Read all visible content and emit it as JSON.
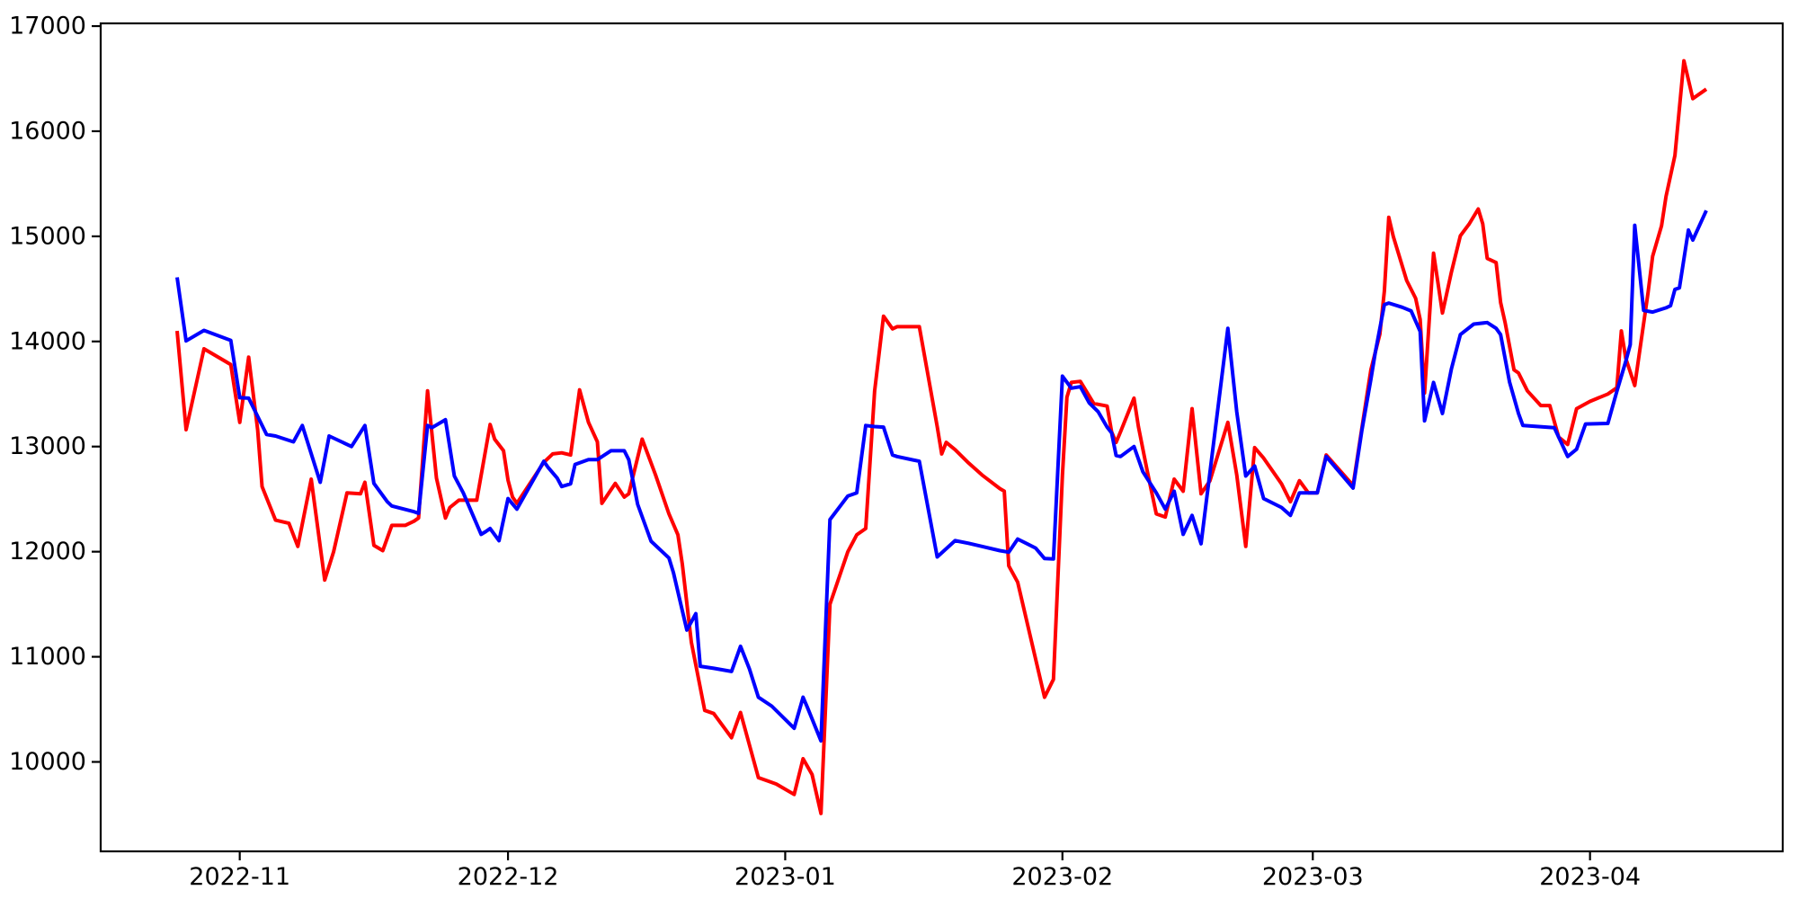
{
  "figure": {
    "background": "#ffffff",
    "axes_edge_color": "#000000",
    "tick_color": "#000000"
  },
  "chart_data": {
    "type": "line",
    "title": "",
    "xlabel": "",
    "ylabel": "",
    "grid": false,
    "legend": null,
    "x_unit": "days since 2022-10-25",
    "x_tick_labels": [
      "2022-11",
      "2022-12",
      "2023-01",
      "2023-02",
      "2023-03",
      "2023-04"
    ],
    "x_tick_positions": [
      7,
      37,
      68,
      99,
      127,
      158
    ],
    "y_tick_labels": [
      "10000",
      "11000",
      "12000",
      "13000",
      "14000",
      "15000",
      "16000",
      "17000"
    ],
    "y_tick_values": [
      10000,
      11000,
      12000,
      13000,
      14000,
      15000,
      16000,
      17000
    ],
    "xlim": [
      -8.55,
      179.55
    ],
    "ylim": [
      9149,
      17026
    ],
    "series": [
      {
        "name": "red-series",
        "color": "#ff0000",
        "points": [
          [
            0,
            14100
          ],
          [
            1,
            13160
          ],
          [
            3,
            13930
          ],
          [
            6,
            13780
          ],
          [
            7,
            13230
          ],
          [
            8,
            13850
          ],
          [
            9,
            13160
          ],
          [
            9.5,
            12620
          ],
          [
            11,
            12300
          ],
          [
            12.5,
            12270
          ],
          [
            13.5,
            12050
          ],
          [
            15,
            12690
          ],
          [
            16.5,
            11730
          ],
          [
            17.5,
            12000
          ],
          [
            19,
            12560
          ],
          [
            20.5,
            12550
          ],
          [
            21,
            12660
          ],
          [
            22,
            12060
          ],
          [
            23,
            12010
          ],
          [
            24,
            12250
          ],
          [
            25.5,
            12250
          ],
          [
            26.5,
            12290
          ],
          [
            27,
            12320
          ],
          [
            28,
            13530
          ],
          [
            29,
            12700
          ],
          [
            30,
            12320
          ],
          [
            30.5,
            12420
          ],
          [
            31.5,
            12490
          ],
          [
            33.5,
            12490
          ],
          [
            35,
            13210
          ],
          [
            35.5,
            13070
          ],
          [
            36.5,
            12960
          ],
          [
            37,
            12680
          ],
          [
            37.5,
            12520
          ],
          [
            38,
            12460
          ],
          [
            41,
            12850
          ],
          [
            42,
            12930
          ],
          [
            43,
            12940
          ],
          [
            44,
            12920
          ],
          [
            45,
            13540
          ],
          [
            46,
            13230
          ],
          [
            47,
            13045
          ],
          [
            47.5,
            12460
          ],
          [
            49,
            12650
          ],
          [
            50,
            12520
          ],
          [
            50.5,
            12550
          ],
          [
            52,
            13070
          ],
          [
            53.5,
            12730
          ],
          [
            55,
            12360
          ],
          [
            56,
            12160
          ],
          [
            56.5,
            11880
          ],
          [
            57.5,
            11140
          ],
          [
            59,
            10490
          ],
          [
            60,
            10460
          ],
          [
            62,
            10230
          ],
          [
            63,
            10470
          ],
          [
            65,
            9850
          ],
          [
            66,
            9820
          ],
          [
            67,
            9790
          ],
          [
            69,
            9690
          ],
          [
            70,
            10030
          ],
          [
            71,
            9880
          ],
          [
            72,
            9510
          ],
          [
            73,
            11500
          ],
          [
            75,
            12000
          ],
          [
            76,
            12160
          ],
          [
            77,
            12220
          ],
          [
            78,
            13530
          ],
          [
            79,
            14240
          ],
          [
            80,
            14120
          ],
          [
            80.5,
            14140
          ],
          [
            83,
            14140
          ],
          [
            85,
            13190
          ],
          [
            85.5,
            12930
          ],
          [
            86,
            13040
          ],
          [
            87,
            12970
          ],
          [
            88.5,
            12845
          ],
          [
            90,
            12730
          ],
          [
            92,
            12600
          ],
          [
            92.5,
            12575
          ],
          [
            93,
            11865
          ],
          [
            94,
            11710
          ],
          [
            97,
            10615
          ],
          [
            98,
            10785
          ],
          [
            99,
            12730
          ],
          [
            99.5,
            13470
          ],
          [
            100,
            13610
          ],
          [
            101,
            13620
          ],
          [
            102.5,
            13410
          ],
          [
            104,
            13385
          ],
          [
            104.5,
            13140
          ],
          [
            105,
            13040
          ],
          [
            105.5,
            13140
          ],
          [
            107,
            13460
          ],
          [
            107.5,
            13190
          ],
          [
            108.5,
            12760
          ],
          [
            109.5,
            12360
          ],
          [
            110.5,
            12330
          ],
          [
            111.5,
            12690
          ],
          [
            112.5,
            12575
          ],
          [
            113.5,
            13360
          ],
          [
            114.5,
            12550
          ],
          [
            115.5,
            12675
          ],
          [
            117.5,
            13230
          ],
          [
            118.5,
            12730
          ],
          [
            119.5,
            12050
          ],
          [
            120.5,
            12990
          ],
          [
            121.5,
            12890
          ],
          [
            123.5,
            12645
          ],
          [
            124.5,
            12475
          ],
          [
            125.5,
            12675
          ],
          [
            126.5,
            12560
          ],
          [
            127.5,
            12560
          ],
          [
            128.5,
            12920
          ],
          [
            131.5,
            12630
          ],
          [
            133,
            13460
          ],
          [
            133.5,
            13730
          ],
          [
            134.5,
            14070
          ],
          [
            135,
            14480
          ],
          [
            135.5,
            15180
          ],
          [
            136,
            15000
          ],
          [
            137.5,
            14580
          ],
          [
            138.5,
            14410
          ],
          [
            139,
            14210
          ],
          [
            139.5,
            13510
          ],
          [
            140.5,
            14840
          ],
          [
            141.5,
            14270
          ],
          [
            142.5,
            14660
          ],
          [
            143.5,
            15005
          ],
          [
            144.5,
            15120
          ],
          [
            145.5,
            15260
          ],
          [
            146,
            15120
          ],
          [
            146.5,
            14790
          ],
          [
            147.5,
            14750
          ],
          [
            148,
            14370
          ],
          [
            148.5,
            14180
          ],
          [
            149.5,
            13730
          ],
          [
            150,
            13700
          ],
          [
            151,
            13530
          ],
          [
            152.5,
            13390
          ],
          [
            153.5,
            13390
          ],
          [
            154.5,
            13090
          ],
          [
            155.5,
            13020
          ],
          [
            156.5,
            13360
          ],
          [
            158,
            13430
          ],
          [
            160,
            13500
          ],
          [
            161,
            13560
          ],
          [
            161.5,
            14100
          ],
          [
            162,
            13840
          ],
          [
            163,
            13580
          ],
          [
            164.5,
            14470
          ],
          [
            165,
            14810
          ],
          [
            166,
            15100
          ],
          [
            166.5,
            15380
          ],
          [
            167.5,
            15770
          ],
          [
            168.5,
            16670
          ],
          [
            169.5,
            16310
          ],
          [
            171,
            16400
          ]
        ]
      },
      {
        "name": "blue-series",
        "color": "#0000ff",
        "points": [
          [
            0,
            14610
          ],
          [
            1,
            14005
          ],
          [
            3,
            14105
          ],
          [
            6,
            14010
          ],
          [
            7,
            13465
          ],
          [
            8,
            13460
          ],
          [
            10,
            13115
          ],
          [
            11,
            13100
          ],
          [
            13,
            13045
          ],
          [
            14,
            13200
          ],
          [
            16,
            12660
          ],
          [
            17,
            13100
          ],
          [
            19.5,
            13000
          ],
          [
            21,
            13200
          ],
          [
            22,
            12650
          ],
          [
            23.5,
            12475
          ],
          [
            24,
            12435
          ],
          [
            26.5,
            12380
          ],
          [
            27,
            12365
          ],
          [
            28,
            13200
          ],
          [
            28.5,
            13180
          ],
          [
            30,
            13255
          ],
          [
            31,
            12720
          ],
          [
            32,
            12560
          ],
          [
            34,
            12165
          ],
          [
            34.5,
            12190
          ],
          [
            35,
            12220
          ],
          [
            36,
            12105
          ],
          [
            37,
            12505
          ],
          [
            38,
            12405
          ],
          [
            41,
            12860
          ],
          [
            41.5,
            12800
          ],
          [
            42.5,
            12700
          ],
          [
            43,
            12620
          ],
          [
            44,
            12645
          ],
          [
            44.5,
            12830
          ],
          [
            46,
            12875
          ],
          [
            47,
            12875
          ],
          [
            48.5,
            12960
          ],
          [
            50,
            12960
          ],
          [
            50.5,
            12875
          ],
          [
            51.5,
            12450
          ],
          [
            53,
            12100
          ],
          [
            55,
            11940
          ],
          [
            55.5,
            11800
          ],
          [
            57,
            11255
          ],
          [
            58,
            11410
          ],
          [
            58.5,
            10910
          ],
          [
            60,
            10890
          ],
          [
            62,
            10860
          ],
          [
            63,
            11100
          ],
          [
            64,
            10885
          ],
          [
            65,
            10615
          ],
          [
            66.5,
            10530
          ],
          [
            69,
            10320
          ],
          [
            70,
            10615
          ],
          [
            70.5,
            10515
          ],
          [
            72,
            10200
          ],
          [
            73,
            12305
          ],
          [
            75,
            12530
          ],
          [
            76,
            12560
          ],
          [
            77,
            13200
          ],
          [
            78,
            13190
          ],
          [
            79,
            13185
          ],
          [
            80,
            12920
          ],
          [
            80.5,
            12905
          ],
          [
            83,
            12860
          ],
          [
            85,
            11950
          ],
          [
            87,
            12105
          ],
          [
            88.5,
            12080
          ],
          [
            90,
            12050
          ],
          [
            92,
            12010
          ],
          [
            93,
            11995
          ],
          [
            94,
            12120
          ],
          [
            96,
            12035
          ],
          [
            97,
            11935
          ],
          [
            98,
            11930
          ],
          [
            99,
            13670
          ],
          [
            100,
            13555
          ],
          [
            101,
            13570
          ],
          [
            102,
            13415
          ],
          [
            103,
            13330
          ],
          [
            104,
            13185
          ],
          [
            104.5,
            13130
          ],
          [
            105,
            12915
          ],
          [
            105.5,
            12905
          ],
          [
            107,
            13000
          ],
          [
            108,
            12760
          ],
          [
            109.5,
            12560
          ],
          [
            110.5,
            12405
          ],
          [
            111.5,
            12575
          ],
          [
            112.5,
            12165
          ],
          [
            113.5,
            12345
          ],
          [
            114.5,
            12075
          ],
          [
            117.5,
            14125
          ],
          [
            118.5,
            13330
          ],
          [
            119.5,
            12720
          ],
          [
            120.5,
            12815
          ],
          [
            121.5,
            12505
          ],
          [
            123.5,
            12420
          ],
          [
            124.5,
            12345
          ],
          [
            125.5,
            12560
          ],
          [
            127.5,
            12560
          ],
          [
            128.5,
            12905
          ],
          [
            131.5,
            12605
          ],
          [
            132.5,
            13160
          ],
          [
            133.5,
            13640
          ],
          [
            134,
            13900
          ],
          [
            135,
            14350
          ],
          [
            135.5,
            14365
          ],
          [
            137,
            14325
          ],
          [
            138,
            14290
          ],
          [
            139,
            14095
          ],
          [
            139.5,
            13245
          ],
          [
            140.5,
            13610
          ],
          [
            141.5,
            13315
          ],
          [
            142.5,
            13740
          ],
          [
            143.5,
            14065
          ],
          [
            145,
            14165
          ],
          [
            146.5,
            14180
          ],
          [
            147.5,
            14125
          ],
          [
            148,
            14065
          ],
          [
            149,
            13615
          ],
          [
            150,
            13315
          ],
          [
            150.5,
            13200
          ],
          [
            154,
            13180
          ],
          [
            155.5,
            12905
          ],
          [
            156.5,
            12975
          ],
          [
            157.5,
            13215
          ],
          [
            160,
            13220
          ],
          [
            161,
            13525
          ],
          [
            162,
            13810
          ],
          [
            162.5,
            13970
          ],
          [
            163,
            15105
          ],
          [
            164,
            14295
          ],
          [
            165,
            14280
          ],
          [
            166.5,
            14320
          ],
          [
            167,
            14340
          ],
          [
            167.5,
            14495
          ],
          [
            168,
            14510
          ],
          [
            169,
            15060
          ],
          [
            169.5,
            14965
          ],
          [
            171,
            15245
          ]
        ]
      }
    ]
  }
}
